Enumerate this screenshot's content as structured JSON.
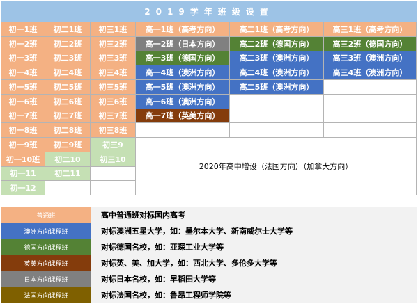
{
  "title": "2019学年班级设置",
  "colors": {
    "o": "#F4B183",
    "g": "#808080",
    "d": "#548235",
    "b": "#4472C4",
    "r": "#843C0C",
    "l": "#C5E0B4",
    "w": "#FFFFFF",
    "f": "#7F6000"
  },
  "grid": [
    [
      [
        "初一1班",
        "o"
      ],
      [
        "初二1班",
        "o"
      ],
      [
        "初三1班",
        "o"
      ],
      [
        "高一1班（高考方向）",
        "o"
      ],
      [
        "高二1班（高考方向）",
        "o"
      ],
      [
        "高三1班（高考方向）",
        "o"
      ]
    ],
    [
      [
        "初一2班",
        "o"
      ],
      [
        "初二2班",
        "o"
      ],
      [
        "初三2班",
        "o"
      ],
      [
        "高一2班（日本方向）",
        "g"
      ],
      [
        "高二2班（德国方向）",
        "d"
      ],
      [
        "高三2班（德国方向）",
        "d"
      ]
    ],
    [
      [
        "初一3班",
        "o"
      ],
      [
        "初二3班",
        "o"
      ],
      [
        "初三3班",
        "o"
      ],
      [
        "高一3班（德国方向）",
        "d"
      ],
      [
        "高二3班（澳洲方向）",
        "b"
      ],
      [
        "高三3班（澳洲方向）",
        "b"
      ]
    ],
    [
      [
        "初一4班",
        "o"
      ],
      [
        "初二4班",
        "o"
      ],
      [
        "初三4班",
        "o"
      ],
      [
        "高一4班（澳洲方向）",
        "b"
      ],
      [
        "高二4班（澳洲方向）",
        "b"
      ],
      [
        "高三4班（澳洲方向）",
        "b"
      ]
    ],
    [
      [
        "初一5班",
        "o"
      ],
      [
        "初二5班",
        "o"
      ],
      [
        "初三5班",
        "o"
      ],
      [
        "高一5班（澳洲方向）",
        "b"
      ],
      [
        "高二5班（澳洲方向）",
        "b"
      ],
      [
        "",
        "w"
      ]
    ],
    [
      [
        "初一6班",
        "o"
      ],
      [
        "初二6班",
        "o"
      ],
      [
        "初三6班",
        "o"
      ],
      [
        "高一6班（澳洲方向）",
        "b"
      ],
      [
        "",
        "w"
      ],
      [
        "",
        "w"
      ]
    ],
    [
      [
        "初一7班",
        "o"
      ],
      [
        "初二7班",
        "o"
      ],
      [
        "初三7班",
        "o"
      ],
      [
        "高一7班（英美方向）",
        "r"
      ],
      [
        "",
        "w"
      ],
      [
        "",
        "w"
      ]
    ],
    [
      [
        "初一8班",
        "o"
      ],
      [
        "初二8班",
        "o"
      ],
      [
        "初三8班",
        "o"
      ],
      [
        "",
        "w"
      ],
      [
        "",
        "w"
      ],
      [
        "",
        "w"
      ]
    ],
    [
      [
        "初一9班",
        "o"
      ],
      [
        "初二9班",
        "o"
      ],
      [
        "初三9",
        "l"
      ]
    ],
    [
      [
        "初一10班",
        "o"
      ],
      [
        "初二10",
        "l"
      ],
      [
        "初三10",
        "l"
      ]
    ],
    [
      [
        "初一11",
        "l"
      ],
      [
        "初二11",
        "l"
      ],
      [
        "",
        "w"
      ]
    ],
    [
      [
        "初一12",
        "l"
      ],
      [
        "",
        "w"
      ],
      [
        "",
        "w"
      ]
    ]
  ],
  "merged_note": "2020年高中增设（法国方向）（加拿大方向）",
  "legend": [
    {
      "label": "普通班",
      "color": "o",
      "desc": "高中普通班对标国内高考"
    },
    {
      "label": "澳洲方向课程班",
      "color": "b",
      "desc": "对标澳洲五星大学，如：墨尔本大学、新南威尔士大学等"
    },
    {
      "label": "德国方向课程班",
      "color": "d",
      "desc": "对标德国名校，如：亚琛工业大学等"
    },
    {
      "label": "英美方向课程班",
      "color": "r",
      "desc": "对标英、美、加大学，如：西北大学、多伦多大学等"
    },
    {
      "label": "日本方向课程班",
      "color": "g",
      "desc": "对标日本名校，如：早稻田大学等"
    },
    {
      "label": "法国方向课程班",
      "color": "f",
      "desc": "对标法国名校，如：鲁昂工程师学院等"
    }
  ]
}
